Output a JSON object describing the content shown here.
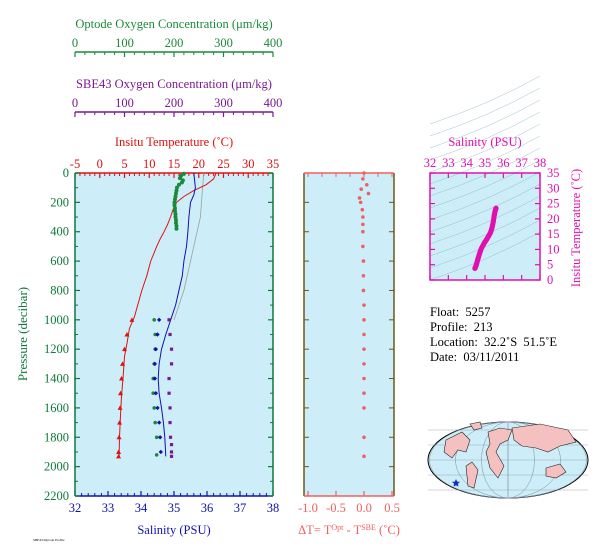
{
  "colors": {
    "panel_bg": "#cdeef8",
    "optode": "#1a8a3a",
    "sbe43": "#7a1890",
    "temperature": "#e01010",
    "salinity": "#1010b0",
    "pressure_axis": "#0f7a3a",
    "delta": "#f06060",
    "ts": "#e010b0"
  },
  "optode_axis": {
    "title": "Optode Oxygen Concentration (μm/kg)",
    "ticks": [
      "0",
      "100",
      "200",
      "300",
      "400"
    ]
  },
  "sbe_axis": {
    "title": "SBE43 Oxygen Concentration (μm/kg)",
    "ticks": [
      "0",
      "100",
      "200",
      "300",
      "400"
    ]
  },
  "temp_axis": {
    "title": "Insitu Temperature (˚C)",
    "ticks": [
      "-5",
      "0",
      "5",
      "10",
      "15",
      "20",
      "25",
      "30",
      "35"
    ]
  },
  "sal_axis": {
    "title": "Salinity (PSU)",
    "ticks": [
      "32",
      "33",
      "34",
      "35",
      "36",
      "37",
      "38"
    ]
  },
  "pressure_axis": {
    "title": "Pressure (decibar)",
    "ticks": [
      "0",
      "200",
      "400",
      "600",
      "800",
      "1000",
      "1200",
      "1400",
      "1600",
      "1800",
      "2000",
      "2200"
    ]
  },
  "delta_axis": {
    "title": "ΔT= T^Opt - T^SBE (˚C)",
    "ticks": [
      "-1.0",
      "-0.5",
      "0.0",
      "0.5"
    ]
  },
  "ts_axis": {
    "top_title": "Salinity (PSU)",
    "top_ticks": [
      "32",
      "33",
      "34",
      "35",
      "36",
      "37",
      "38"
    ],
    "right_title": "Insitu Temperature (˚C)",
    "right_ticks": [
      "0",
      "5",
      "10",
      "15",
      "20",
      "25",
      "30",
      "35"
    ]
  },
  "info": {
    "float": "Float:  5257",
    "profile": "Profile:  213",
    "location": "Location:  32.2˚S  51.5˚E",
    "date": "Date:  03/11/2011"
  },
  "footer_text": "SBE43/Optode Profile",
  "chart_data": [
    {
      "type": "line",
      "panel": "profile",
      "y_label": "Pressure (decibar)",
      "ylim": [
        2200,
        0
      ],
      "series": [
        {
          "name": "Insitu Temperature (˚C)",
          "units": "˚C",
          "xlim": [
            -5,
            35
          ],
          "x": [
            23.5,
            23.0,
            21.5,
            19.0,
            17.0,
            15.5,
            14.8,
            14.3,
            13.7,
            13.0,
            12.2,
            11.5,
            10.9,
            10.3,
            9.5,
            8.5,
            7.0,
            6.0,
            5.5,
            5.0,
            4.7,
            4.4,
            4.2,
            4.0,
            3.9
          ],
          "y": [
            0,
            40,
            80,
            120,
            160,
            200,
            250,
            300,
            350,
            400,
            450,
            500,
            550,
            600,
            700,
            800,
            980,
            1060,
            1160,
            1250,
            1400,
            1520,
            1650,
            1800,
            1930
          ]
        },
        {
          "name": "Salinity (PSU)",
          "units": "PSU",
          "xlim": [
            32,
            38
          ],
          "x": [
            35.6,
            35.65,
            35.6,
            35.5,
            35.45,
            35.42,
            35.38,
            35.3,
            35.25,
            35.15,
            35.05,
            34.9,
            34.75,
            34.62,
            34.55,
            34.52,
            34.55,
            34.62,
            34.68,
            34.72,
            34.75
          ],
          "y": [
            0,
            100,
            150,
            200,
            300,
            400,
            500,
            600,
            700,
            800,
            900,
            1000,
            1100,
            1200,
            1300,
            1400,
            1500,
            1600,
            1700,
            1800,
            1930
          ]
        },
        {
          "name": "Optode Oxygen Concentration (μm/kg)",
          "units": "μm/kg",
          "xlim": [
            0,
            400
          ],
          "x": [
            220,
            215,
            222,
            208,
            203,
            200,
            202,
            203,
            204,
            205,
            160,
            162,
            162,
            160,
            158,
            158,
            160,
            162,
            165,
            165
          ],
          "y": [
            0,
            30,
            60,
            100,
            150,
            200,
            250,
            300,
            350,
            400,
            1000,
            1100,
            1200,
            1300,
            1400,
            1500,
            1600,
            1700,
            1800,
            1920
          ]
        },
        {
          "name": "SBE43 Oxygen Concentration (μm/kg)",
          "units": "μm/kg",
          "xlim": [
            0,
            400
          ],
          "x": [
            190,
            192,
            195,
            195,
            190,
            190,
            192,
            192,
            193,
            195,
            195,
            195
          ],
          "y": [
            1000,
            1100,
            1200,
            1300,
            1400,
            1500,
            1600,
            1700,
            1800,
            1850,
            1900,
            1930
          ]
        }
      ]
    },
    {
      "type": "scatter",
      "panel": "delta",
      "x_label": "ΔT= T^Opt - T^SBE (˚C)",
      "xlim": [
        -1.1,
        0.55
      ],
      "ylim": [
        2200,
        0
      ],
      "series": [
        {
          "x": [
            0.0,
            -0.02,
            0.05,
            -0.05,
            0.08,
            -0.08,
            -0.06,
            -0.03,
            -0.02,
            -0.02,
            -0.02,
            -0.02,
            -0.01,
            -0.01,
            -0.01,
            0.0,
            0.0,
            0.0,
            0.0,
            0.0,
            0.0,
            0.0,
            0.0,
            0.0,
            0.0
          ],
          "y": [
            0,
            40,
            80,
            110,
            140,
            170,
            200,
            250,
            300,
            350,
            400,
            500,
            600,
            700,
            800,
            900,
            1000,
            1100,
            1200,
            1300,
            1400,
            1500,
            1600,
            1800,
            1930
          ]
        }
      ]
    },
    {
      "type": "scatter",
      "panel": "ts",
      "x_label": "Salinity (PSU)",
      "y_label": "Insitu Temperature (˚C)",
      "xlim": [
        32,
        38
      ],
      "ylim": [
        0,
        35
      ],
      "series": [
        {
          "x": [
            34.45,
            34.5,
            34.55,
            34.62,
            34.7,
            34.8,
            34.95,
            35.08,
            35.2,
            35.3,
            35.38,
            35.45,
            35.5,
            35.55,
            35.6
          ],
          "y": [
            3.8,
            4.5,
            5.5,
            7.0,
            8.6,
            10.3,
            12.0,
            13.2,
            14.4,
            15.5,
            17.0,
            19.0,
            21.0,
            22.5,
            23.5
          ]
        }
      ]
    }
  ]
}
